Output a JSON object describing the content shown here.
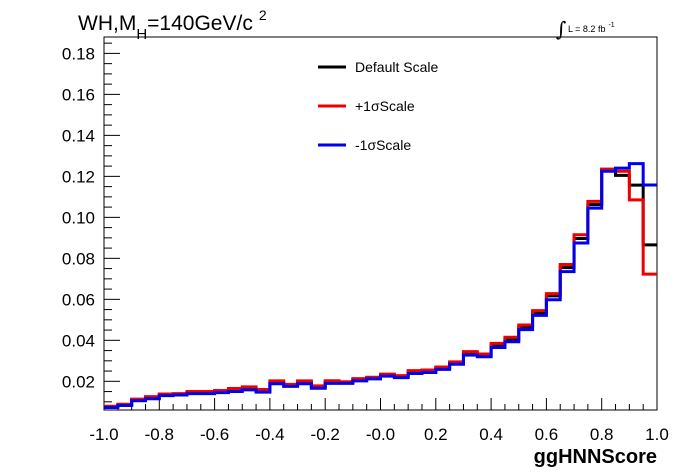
{
  "chart_data": {
    "type": "line",
    "step": true,
    "title_main": "WH,M",
    "title_sub": "H",
    "title_rest": "=140GeV/c",
    "title_sup": "2",
    "lumi_label": "L = 8.2 fb",
    "lumi_sup": "-1",
    "xlabel": "ggHNNScore",
    "ylabel": "",
    "xlim": [
      -1.0,
      1.0
    ],
    "ylim": [
      0.006,
      0.188
    ],
    "x_ticks": [
      "-1.0",
      "-0.8",
      "-0.6",
      "-0.4",
      "-0.2",
      "-0.0",
      "0.2",
      "0.4",
      "0.6",
      "0.8",
      "1.0"
    ],
    "y_ticks": [
      "0.02",
      "0.04",
      "0.06",
      "0.08",
      "0.10",
      "0.12",
      "0.14",
      "0.16",
      "0.18"
    ],
    "bin_edges": [
      -1.0,
      -0.95,
      -0.9,
      -0.85,
      -0.8,
      -0.75,
      -0.7,
      -0.65,
      -0.6,
      -0.55,
      -0.5,
      -0.45,
      -0.4,
      -0.35,
      -0.3,
      -0.25,
      -0.2,
      -0.15,
      -0.1,
      -0.05,
      0.0,
      0.05,
      0.1,
      0.15,
      0.2,
      0.25,
      0.3,
      0.35,
      0.4,
      0.45,
      0.5,
      0.55,
      0.6,
      0.65,
      0.7,
      0.75,
      0.8,
      0.85,
      0.9,
      0.95,
      1.0
    ],
    "series": [
      {
        "name": "Default Scale",
        "color": "#000000",
        "values": [
          0.0075,
          0.0085,
          0.011,
          0.012,
          0.0135,
          0.0138,
          0.0145,
          0.0145,
          0.015,
          0.0158,
          0.0165,
          0.0153,
          0.0195,
          0.018,
          0.0195,
          0.0172,
          0.0197,
          0.0195,
          0.0208,
          0.0217,
          0.023,
          0.0222,
          0.0245,
          0.025,
          0.0265,
          0.029,
          0.0338,
          0.0327,
          0.0375,
          0.0405,
          0.0465,
          0.0535,
          0.0617,
          0.0755,
          0.0897,
          0.1062,
          0.1235,
          0.1205,
          0.1157,
          0.0866
        ]
      },
      {
        "name": "+1σScale",
        "color": "#ee0000",
        "values": [
          0.0078,
          0.0088,
          0.0113,
          0.0125,
          0.0138,
          0.014,
          0.015,
          0.015,
          0.0155,
          0.0165,
          0.0173,
          0.016,
          0.0202,
          0.0185,
          0.0202,
          0.0178,
          0.0203,
          0.0198,
          0.0213,
          0.022,
          0.0235,
          0.0228,
          0.0252,
          0.0255,
          0.027,
          0.0295,
          0.0345,
          0.0333,
          0.0385,
          0.0415,
          0.0475,
          0.0545,
          0.0628,
          0.077,
          0.0915,
          0.1078,
          0.1235,
          0.1225,
          0.1085,
          0.0723
        ]
      },
      {
        "name": "-1σScale",
        "color": "#0000ee",
        "values": [
          0.0072,
          0.0082,
          0.0105,
          0.0115,
          0.013,
          0.0133,
          0.014,
          0.014,
          0.0145,
          0.015,
          0.0158,
          0.0147,
          0.0188,
          0.0175,
          0.0188,
          0.0166,
          0.019,
          0.019,
          0.0202,
          0.0212,
          0.0225,
          0.0218,
          0.0238,
          0.0243,
          0.0258,
          0.0283,
          0.0328,
          0.032,
          0.0365,
          0.0393,
          0.0452,
          0.0522,
          0.0598,
          0.0735,
          0.0875,
          0.1045,
          0.1225,
          0.124,
          0.1262,
          0.1158
        ]
      }
    ],
    "legend_position": "top-center",
    "grid": false
  }
}
